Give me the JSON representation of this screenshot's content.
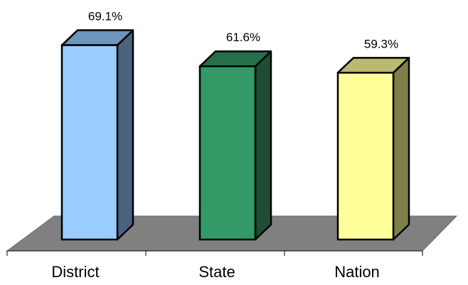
{
  "chart_data": {
    "type": "bar",
    "style": "3d",
    "title": "",
    "xlabel": "",
    "ylabel": "",
    "categories": [
      "District",
      "State",
      "Nation"
    ],
    "values": [
      69.1,
      61.6,
      59.3
    ],
    "value_labels": [
      "69.1%",
      "61.6%",
      "59.3%"
    ],
    "unit": "%",
    "ylim": [
      0,
      70
    ],
    "grid": false,
    "legend": "none",
    "colors": {
      "bars": [
        {
          "front": "#99CCFF",
          "top": "#6E95BA",
          "side": "#4D627F"
        },
        {
          "front": "#339966",
          "top": "#25704A",
          "side": "#1D4D35"
        },
        {
          "front": "#FFFF99",
          "top": "#BABA6E",
          "side": "#7F7F4D"
        }
      ],
      "floor": "#808080",
      "outline": "#000000"
    }
  }
}
